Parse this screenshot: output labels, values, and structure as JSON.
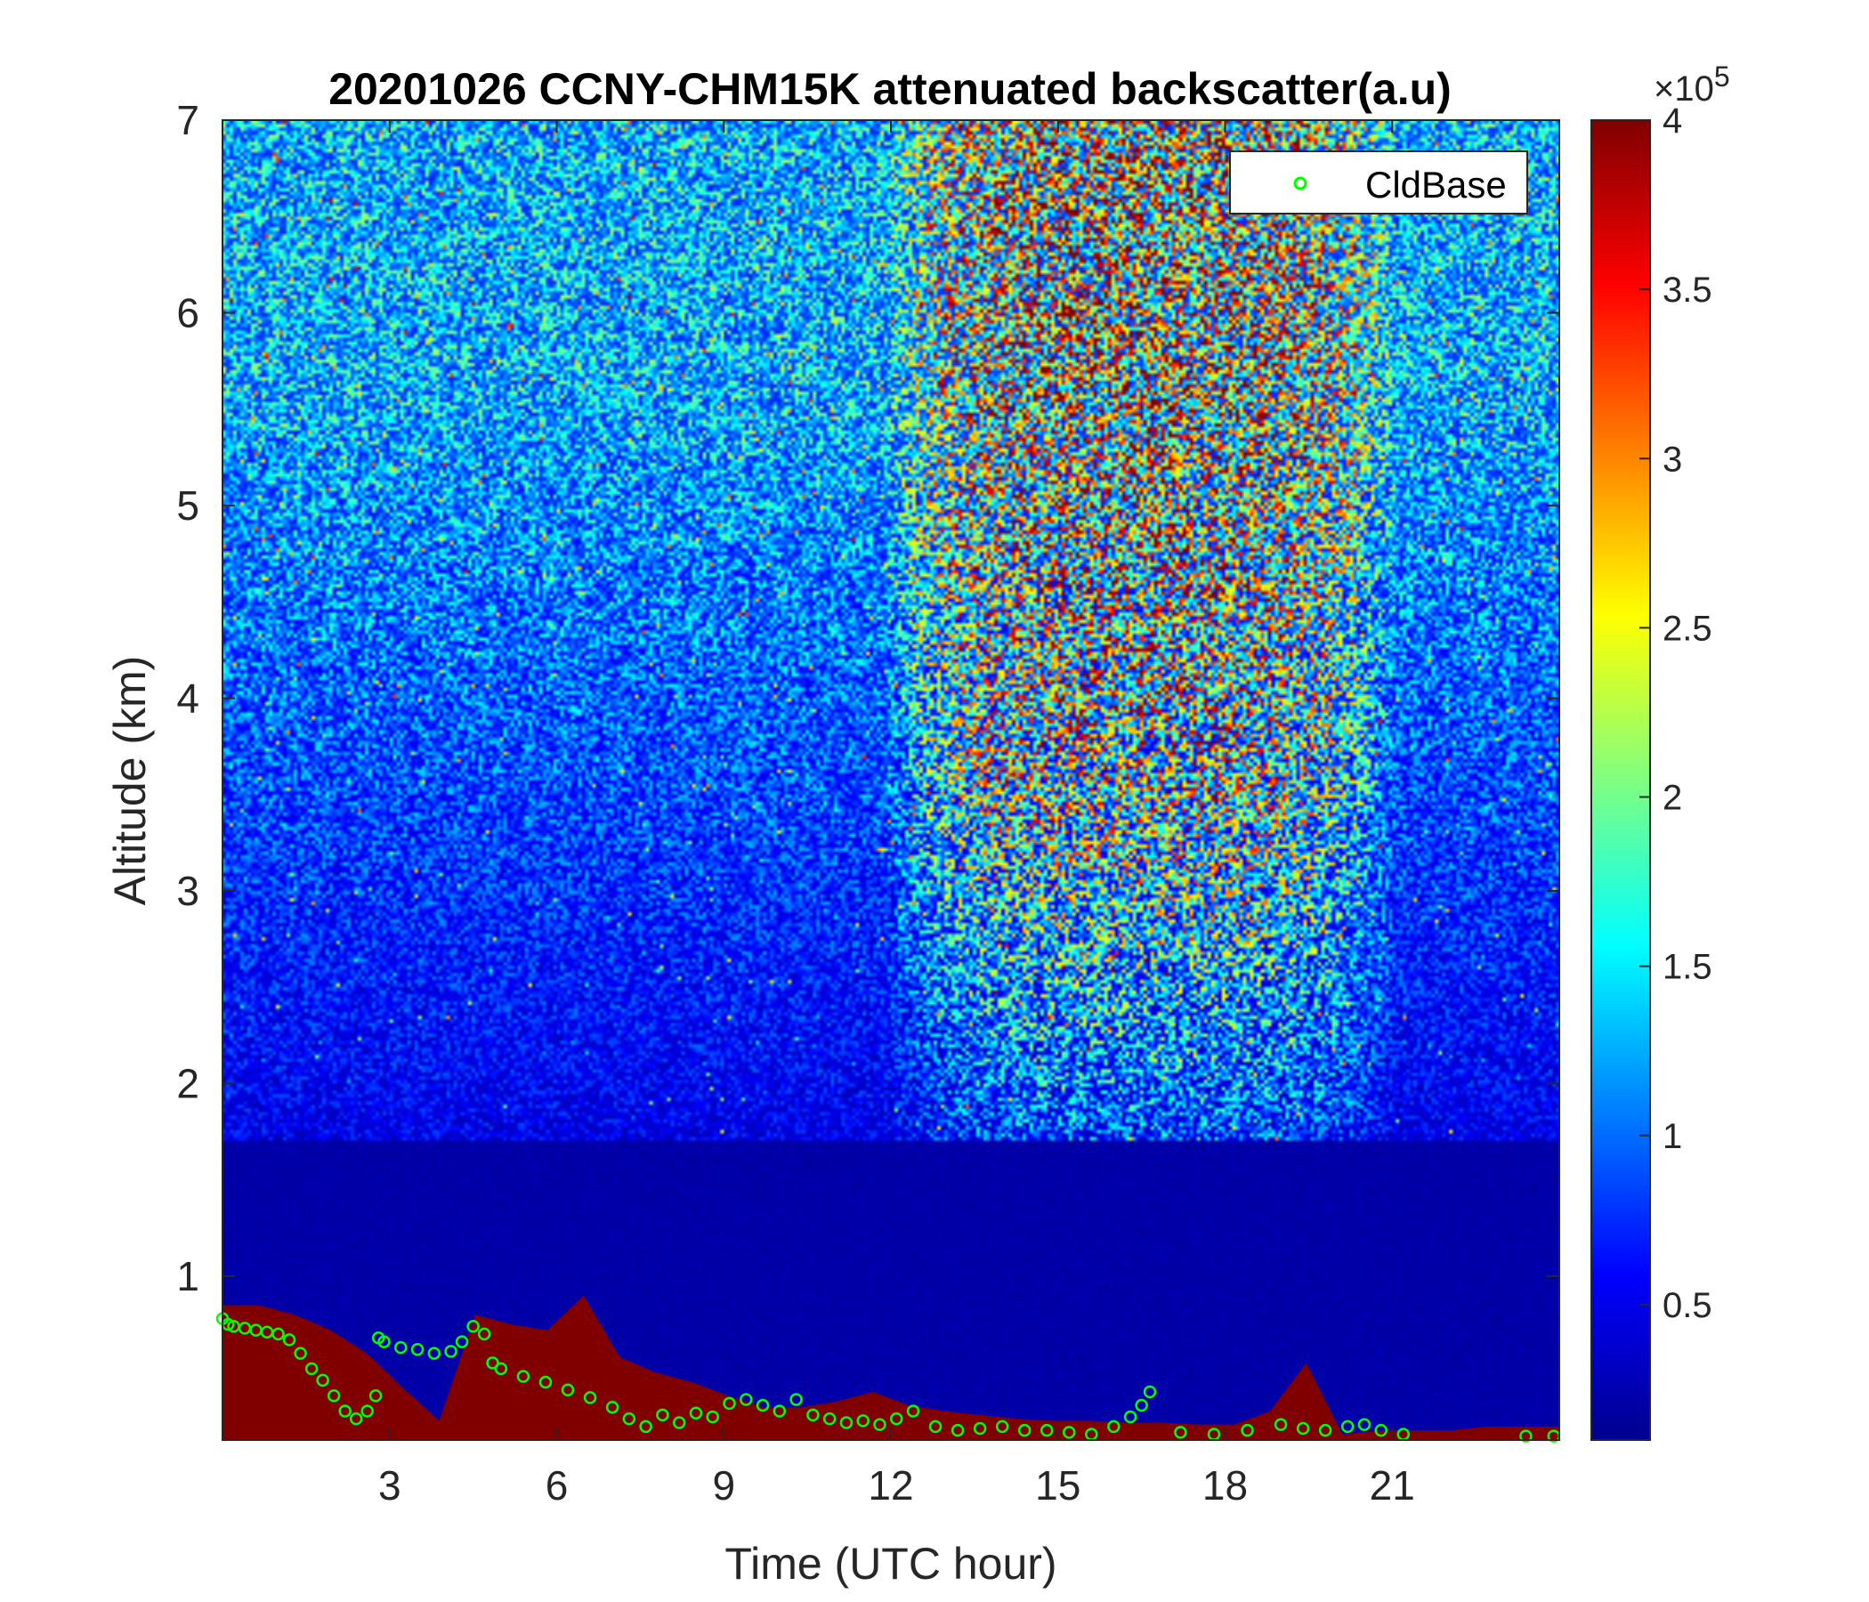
{
  "chart_data": {
    "type": "heatmap",
    "title": "20201026 CCNY-CHM15K attenuated backscatter(a.u)",
    "xlabel": "Time (UTC hour)",
    "ylabel": "Altitude (km)",
    "xlim": [
      0,
      24
    ],
    "ylim": [
      0.15,
      7
    ],
    "xticks": [
      "3",
      "6",
      "9",
      "12",
      "15",
      "18",
      "21"
    ],
    "yticks": [
      "1",
      "2",
      "3",
      "4",
      "5",
      "6",
      "7"
    ],
    "colorbar": {
      "colormap": "jet",
      "range": [
        0.1,
        4
      ],
      "ticks": [
        "0.5",
        "1",
        "1.5",
        "2",
        "2.5",
        "3",
        "3.5",
        "4"
      ],
      "exponent_label": "×10",
      "exponent": "5"
    },
    "legend": {
      "location": "top-right",
      "entries": [
        {
          "name": "CldBase",
          "marker": "circle",
          "color": "#00ff00"
        }
      ]
    },
    "series": [
      {
        "name": "CldBase",
        "x": [
          0.0,
          0.1,
          0.2,
          0.4,
          0.6,
          0.8,
          1.0,
          1.2,
          1.4,
          1.6,
          1.8,
          2.0,
          2.2,
          2.4,
          2.6,
          2.75,
          2.8,
          2.9,
          3.2,
          3.5,
          3.8,
          4.1,
          4.3,
          4.5,
          4.7,
          4.85,
          5.0,
          5.4,
          5.8,
          6.2,
          6.6,
          7.0,
          7.3,
          7.6,
          7.9,
          8.2,
          8.5,
          8.8,
          9.1,
          9.4,
          9.7,
          10.0,
          10.3,
          10.6,
          10.9,
          11.2,
          11.5,
          11.8,
          12.1,
          12.4,
          12.8,
          13.2,
          13.6,
          14.0,
          14.4,
          14.8,
          15.2,
          15.6,
          16.0,
          16.3,
          16.5,
          16.65,
          17.2,
          17.8,
          18.4,
          19.0,
          19.4,
          19.8,
          20.2,
          20.5,
          20.8,
          21.2,
          23.4,
          23.9
        ],
        "y": [
          0.78,
          0.75,
          0.74,
          0.73,
          0.72,
          0.71,
          0.7,
          0.67,
          0.6,
          0.52,
          0.46,
          0.38,
          0.3,
          0.26,
          0.3,
          0.38,
          0.68,
          0.66,
          0.63,
          0.62,
          0.6,
          0.61,
          0.66,
          0.74,
          0.7,
          0.55,
          0.52,
          0.48,
          0.45,
          0.41,
          0.37,
          0.32,
          0.26,
          0.22,
          0.28,
          0.24,
          0.29,
          0.27,
          0.34,
          0.36,
          0.33,
          0.3,
          0.36,
          0.28,
          0.26,
          0.24,
          0.25,
          0.23,
          0.26,
          0.3,
          0.22,
          0.2,
          0.21,
          0.22,
          0.2,
          0.2,
          0.19,
          0.18,
          0.22,
          0.27,
          0.33,
          0.4,
          0.19,
          0.18,
          0.2,
          0.23,
          0.21,
          0.2,
          0.22,
          0.23,
          0.2,
          0.18,
          0.17,
          0.17
        ]
      }
    ],
    "heatmap_description_values": {
      "boundary_layer_top_km": [
        0.85,
        0.85,
        0.8,
        0.72,
        0.6,
        0.42,
        0.25,
        0.8,
        0.75,
        0.72,
        0.9,
        0.58,
        0.5,
        0.45,
        0.38,
        0.32,
        0.32,
        0.35,
        0.4,
        0.33,
        0.3,
        0.28,
        0.26,
        0.25,
        0.25,
        0.24,
        0.24,
        0.23,
        0.23,
        0.3,
        0.55,
        0.18,
        0.2,
        0.2,
        0.2,
        0.22,
        0.22,
        0.22
      ]
    }
  }
}
